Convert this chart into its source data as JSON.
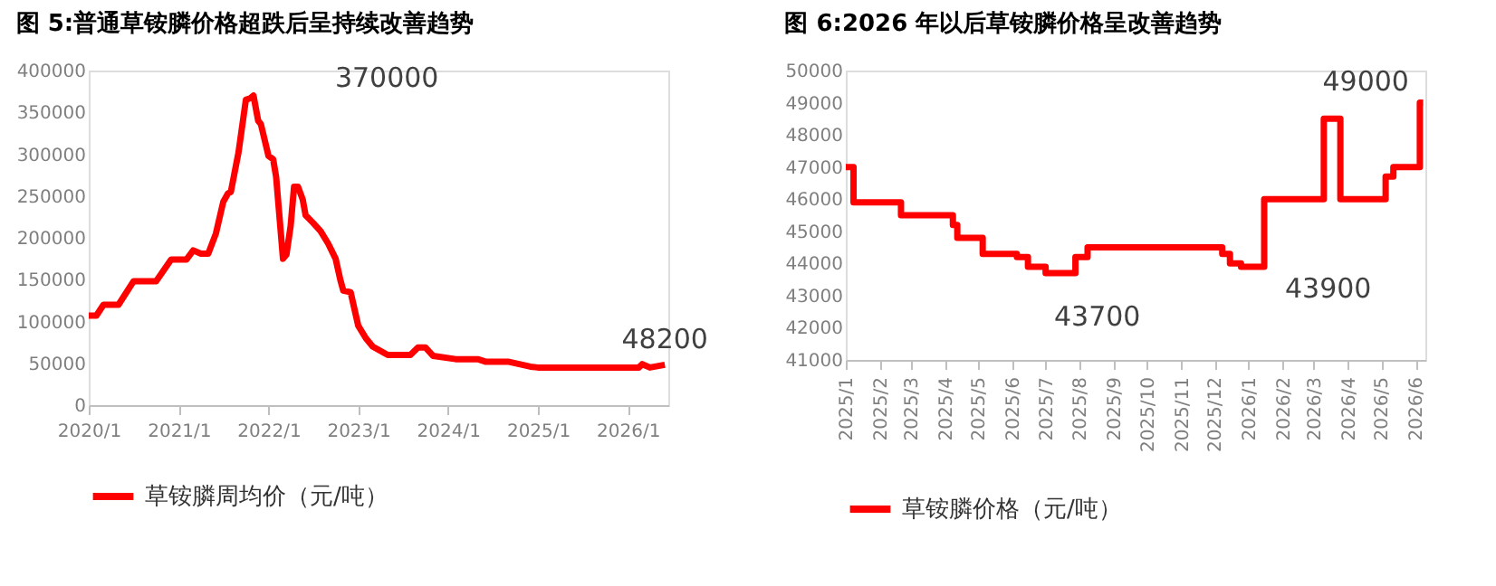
{
  "chart_data": [
    {
      "type": "line",
      "title": "图 5:普通草铵膦价格超跌后呈持续改善趋势",
      "x": [
        "2020-01-01",
        "2020-02-01",
        "2020-03-01",
        "2020-05-01",
        "2020-07-01",
        "2020-10-01",
        "2020-12-01",
        "2021-02-01",
        "2021-03-01",
        "2021-04-01",
        "2021-05-01",
        "2021-06-01",
        "2021-07-01",
        "2021-07-20",
        "2021-08-01",
        "2021-09-01",
        "2021-10-01",
        "2021-10-20",
        "2021-11-01",
        "2021-11-20",
        "2021-12-01",
        "2022-01-01",
        "2022-01-20",
        "2022-02-01",
        "2022-03-01",
        "2022-03-15",
        "2022-04-01",
        "2022-04-15",
        "2022-05-01",
        "2022-05-20",
        "2022-06-01",
        "2022-07-01",
        "2022-08-01",
        "2022-09-01",
        "2022-10-01",
        "2022-10-20",
        "2022-11-01",
        "2022-12-01",
        "2023-01-01",
        "2023-02-01",
        "2023-03-01",
        "2023-05-01",
        "2023-08-01",
        "2023-09-01",
        "2023-10-01",
        "2023-11-01",
        "2024-02-01",
        "2024-05-01",
        "2024-06-01",
        "2024-09-01",
        "2024-12-01",
        "2025-01-01",
        "2026-02-15",
        "2026-03-01",
        "2026-04-01",
        "2026-06-01"
      ],
      "series": [
        {
          "name": "草铵膦周均价（元/吨）",
          "color": "#ff0000",
          "values": [
            107000,
            107000,
            120000,
            120000,
            148000,
            148000,
            174000,
            174000,
            185000,
            181000,
            181000,
            205000,
            243000,
            253000,
            255000,
            302000,
            365000,
            367000,
            370000,
            340000,
            336000,
            298000,
            294000,
            273000,
            175000,
            180000,
            214000,
            261000,
            261000,
            246000,
            227000,
            218000,
            208000,
            193000,
            175000,
            150000,
            137000,
            135000,
            95000,
            80000,
            70000,
            60000,
            60000,
            69000,
            69000,
            59000,
            55000,
            55000,
            52000,
            52000,
            46000,
            45000,
            45000,
            49000,
            45000,
            48200
          ]
        }
      ],
      "xlim": [
        "2020-01-01",
        "2026-06-15"
      ],
      "xticks": [
        {
          "value": "2020-01-01",
          "label": "2020/1"
        },
        {
          "value": "2021-01-01",
          "label": "2021/1"
        },
        {
          "value": "2022-01-01",
          "label": "2022/1"
        },
        {
          "value": "2023-01-01",
          "label": "2023/1"
        },
        {
          "value": "2024-01-01",
          "label": "2024/1"
        },
        {
          "value": "2025-01-01",
          "label": "2025/1"
        },
        {
          "value": "2026-01-01",
          "label": "2026/1"
        }
      ],
      "ylim": [
        0,
        400000
      ],
      "yticks": [
        0,
        50000,
        100000,
        150000,
        200000,
        250000,
        300000,
        350000,
        400000
      ],
      "annotations": [
        {
          "text": "370000",
          "x": "2021-11-01",
          "y": 370000
        },
        {
          "text": "48200",
          "x": "2026-06-01",
          "y": 48200
        }
      ],
      "grid": false,
      "legend": "bottom"
    },
    {
      "type": "step",
      "title": "图 6:2026 年以后草铵膦价格呈改善趋势",
      "x": [
        "2025-01-01",
        "2025-01-08",
        "2025-02-20",
        "2025-04-08",
        "2025-04-12",
        "2025-05-05",
        "2025-06-05",
        "2025-06-15",
        "2025-07-01",
        "2025-07-28",
        "2025-08-08",
        "2025-12-08",
        "2025-12-15",
        "2025-12-25",
        "2026-01-15",
        "2026-03-10",
        "2026-03-25",
        "2026-05-05",
        "2026-05-12",
        "2026-06-05",
        "2026-06-08"
      ],
      "series": [
        {
          "name": "草铵膦价格（元/吨）",
          "color": "#ff0000",
          "values": [
            47000,
            45900,
            45500,
            45200,
            44800,
            44300,
            44200,
            43900,
            43700,
            44200,
            44500,
            44300,
            44000,
            43900,
            46000,
            48500,
            46000,
            46700,
            47000,
            49000,
            49000
          ]
        }
      ],
      "xlim": [
        "2025-01-01",
        "2026-06-10"
      ],
      "xticks": [
        {
          "value": "2025-01-01",
          "label": "2025/1"
        },
        {
          "value": "2025-02-01",
          "label": "2025/2"
        },
        {
          "value": "2025-03-01",
          "label": "2025/3"
        },
        {
          "value": "2025-04-01",
          "label": "2025/4"
        },
        {
          "value": "2025-05-01",
          "label": "2025/5"
        },
        {
          "value": "2025-06-01",
          "label": "2025/6"
        },
        {
          "value": "2025-07-01",
          "label": "2025/7"
        },
        {
          "value": "2025-08-01",
          "label": "2025/8"
        },
        {
          "value": "2025-09-01",
          "label": "2025/9"
        },
        {
          "value": "2025-10-01",
          "label": "2025/10"
        },
        {
          "value": "2025-11-01",
          "label": "2025/11"
        },
        {
          "value": "2025-12-01",
          "label": "2025/12"
        },
        {
          "value": "2026-01-01",
          "label": "2026/1"
        },
        {
          "value": "2026-02-01",
          "label": "2026/2"
        },
        {
          "value": "2026-03-01",
          "label": "2026/3"
        },
        {
          "value": "2026-04-01",
          "label": "2026/4"
        },
        {
          "value": "2026-05-01",
          "label": "2026/5"
        },
        {
          "value": "2026-06-01",
          "label": "2026/6"
        }
      ],
      "ylim": [
        41000,
        50000
      ],
      "yticks": [
        41000,
        42000,
        43000,
        44000,
        45000,
        46000,
        47000,
        48000,
        49000,
        50000
      ],
      "annotations": [
        {
          "text": "43700",
          "x": "2025-07-15",
          "y": 43700
        },
        {
          "text": "43900",
          "x": "2026-01-01",
          "y": 43900
        },
        {
          "text": "49000",
          "x": "2026-06-05",
          "y": 49000
        }
      ],
      "grid": false,
      "legend": "bottom"
    }
  ]
}
